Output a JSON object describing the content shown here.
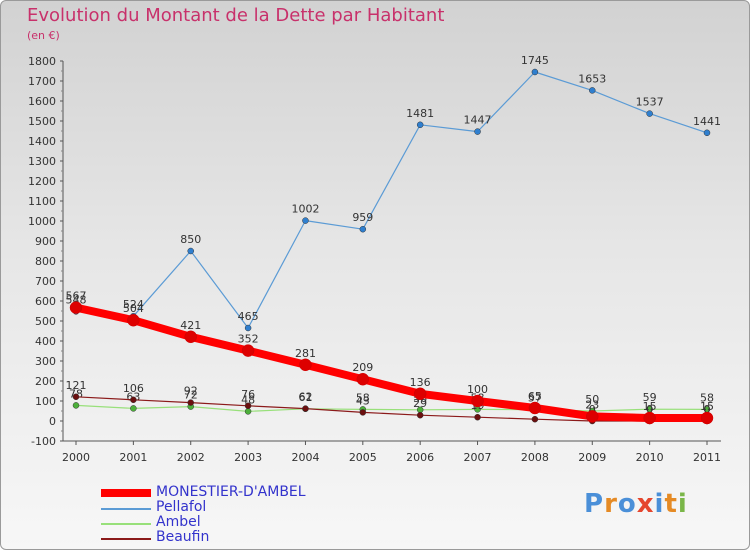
{
  "title": "Evolution du Montant de la Dette par Habitant",
  "unit": "(en €)",
  "logo": [
    "P",
    "r",
    "o",
    "x",
    "i",
    "t",
    "i"
  ],
  "logo_colors": [
    "#4a8fd8",
    "#e58a24",
    "#4a8fd8",
    "#e5462e",
    "#4a8fd8",
    "#e58a24",
    "#7ab648"
  ],
  "chart_data": {
    "type": "line",
    "categories": [
      "2000",
      "2001",
      "2002",
      "2003",
      "2004",
      "2005",
      "2006",
      "2007",
      "2008",
      "2009",
      "2010",
      "2011"
    ],
    "ylim": [
      -100,
      1800
    ],
    "yticks": [
      "-100",
      "0",
      "100",
      "200",
      "300",
      "400",
      "500",
      "600",
      "700",
      "800",
      "900",
      "1000",
      "1100",
      "1200",
      "1300",
      "1400",
      "1500",
      "1600",
      "1700",
      "1800"
    ],
    "grid": false,
    "series": [
      {
        "name": "Pellafol",
        "color": "#5b9bd5",
        "marker": "#2f7fcf",
        "width": 1.2,
        "values": [
          548,
          524,
          850,
          465,
          1002,
          959,
          1481,
          1447,
          1745,
          1653,
          1537,
          1441
        ],
        "labels": [
          "548",
          "524",
          "850",
          "465",
          "1002",
          "959",
          "1481",
          "1447",
          "1745",
          "1653",
          "1537",
          "1441"
        ]
      },
      {
        "name": "Ambel",
        "color": "#98e07a",
        "marker": "#4caf3a",
        "width": 1.2,
        "values": [
          78,
          63,
          72,
          48,
          61,
          58,
          56,
          58,
          57,
          50,
          59,
          58
        ],
        "labels": [
          "78",
          "63",
          "72",
          "48",
          "61",
          "58",
          "56",
          "58",
          "57",
          "50",
          "59",
          "58"
        ]
      },
      {
        "name": "Beaufin",
        "color": "#8b1a1a",
        "marker": "#6b0f0f",
        "width": 1.2,
        "values": [
          121,
          106,
          92,
          76,
          62,
          43,
          29,
          19,
          9,
          0,
          0,
          0
        ],
        "labels": [
          "121",
          "106",
          "92",
          "76",
          "62",
          "43",
          "29",
          "19",
          "9",
          "0",
          "0",
          "0"
        ]
      },
      {
        "name": "MONESTIER-D'AMBEL",
        "color": "#ff0000",
        "marker": "#dd0000",
        "width": 8,
        "values": [
          567,
          504,
          421,
          352,
          281,
          209,
          136,
          100,
          65,
          23,
          15,
          15
        ],
        "labels": [
          "567",
          "504",
          "421",
          "352",
          "281",
          "209",
          "136",
          "100",
          "65",
          "23",
          "15",
          "15"
        ]
      }
    ],
    "legend_order": [
      "MONESTIER-D'AMBEL",
      "Pellafol",
      "Ambel",
      "Beaufin"
    ],
    "legend_position": "bottom-left"
  }
}
